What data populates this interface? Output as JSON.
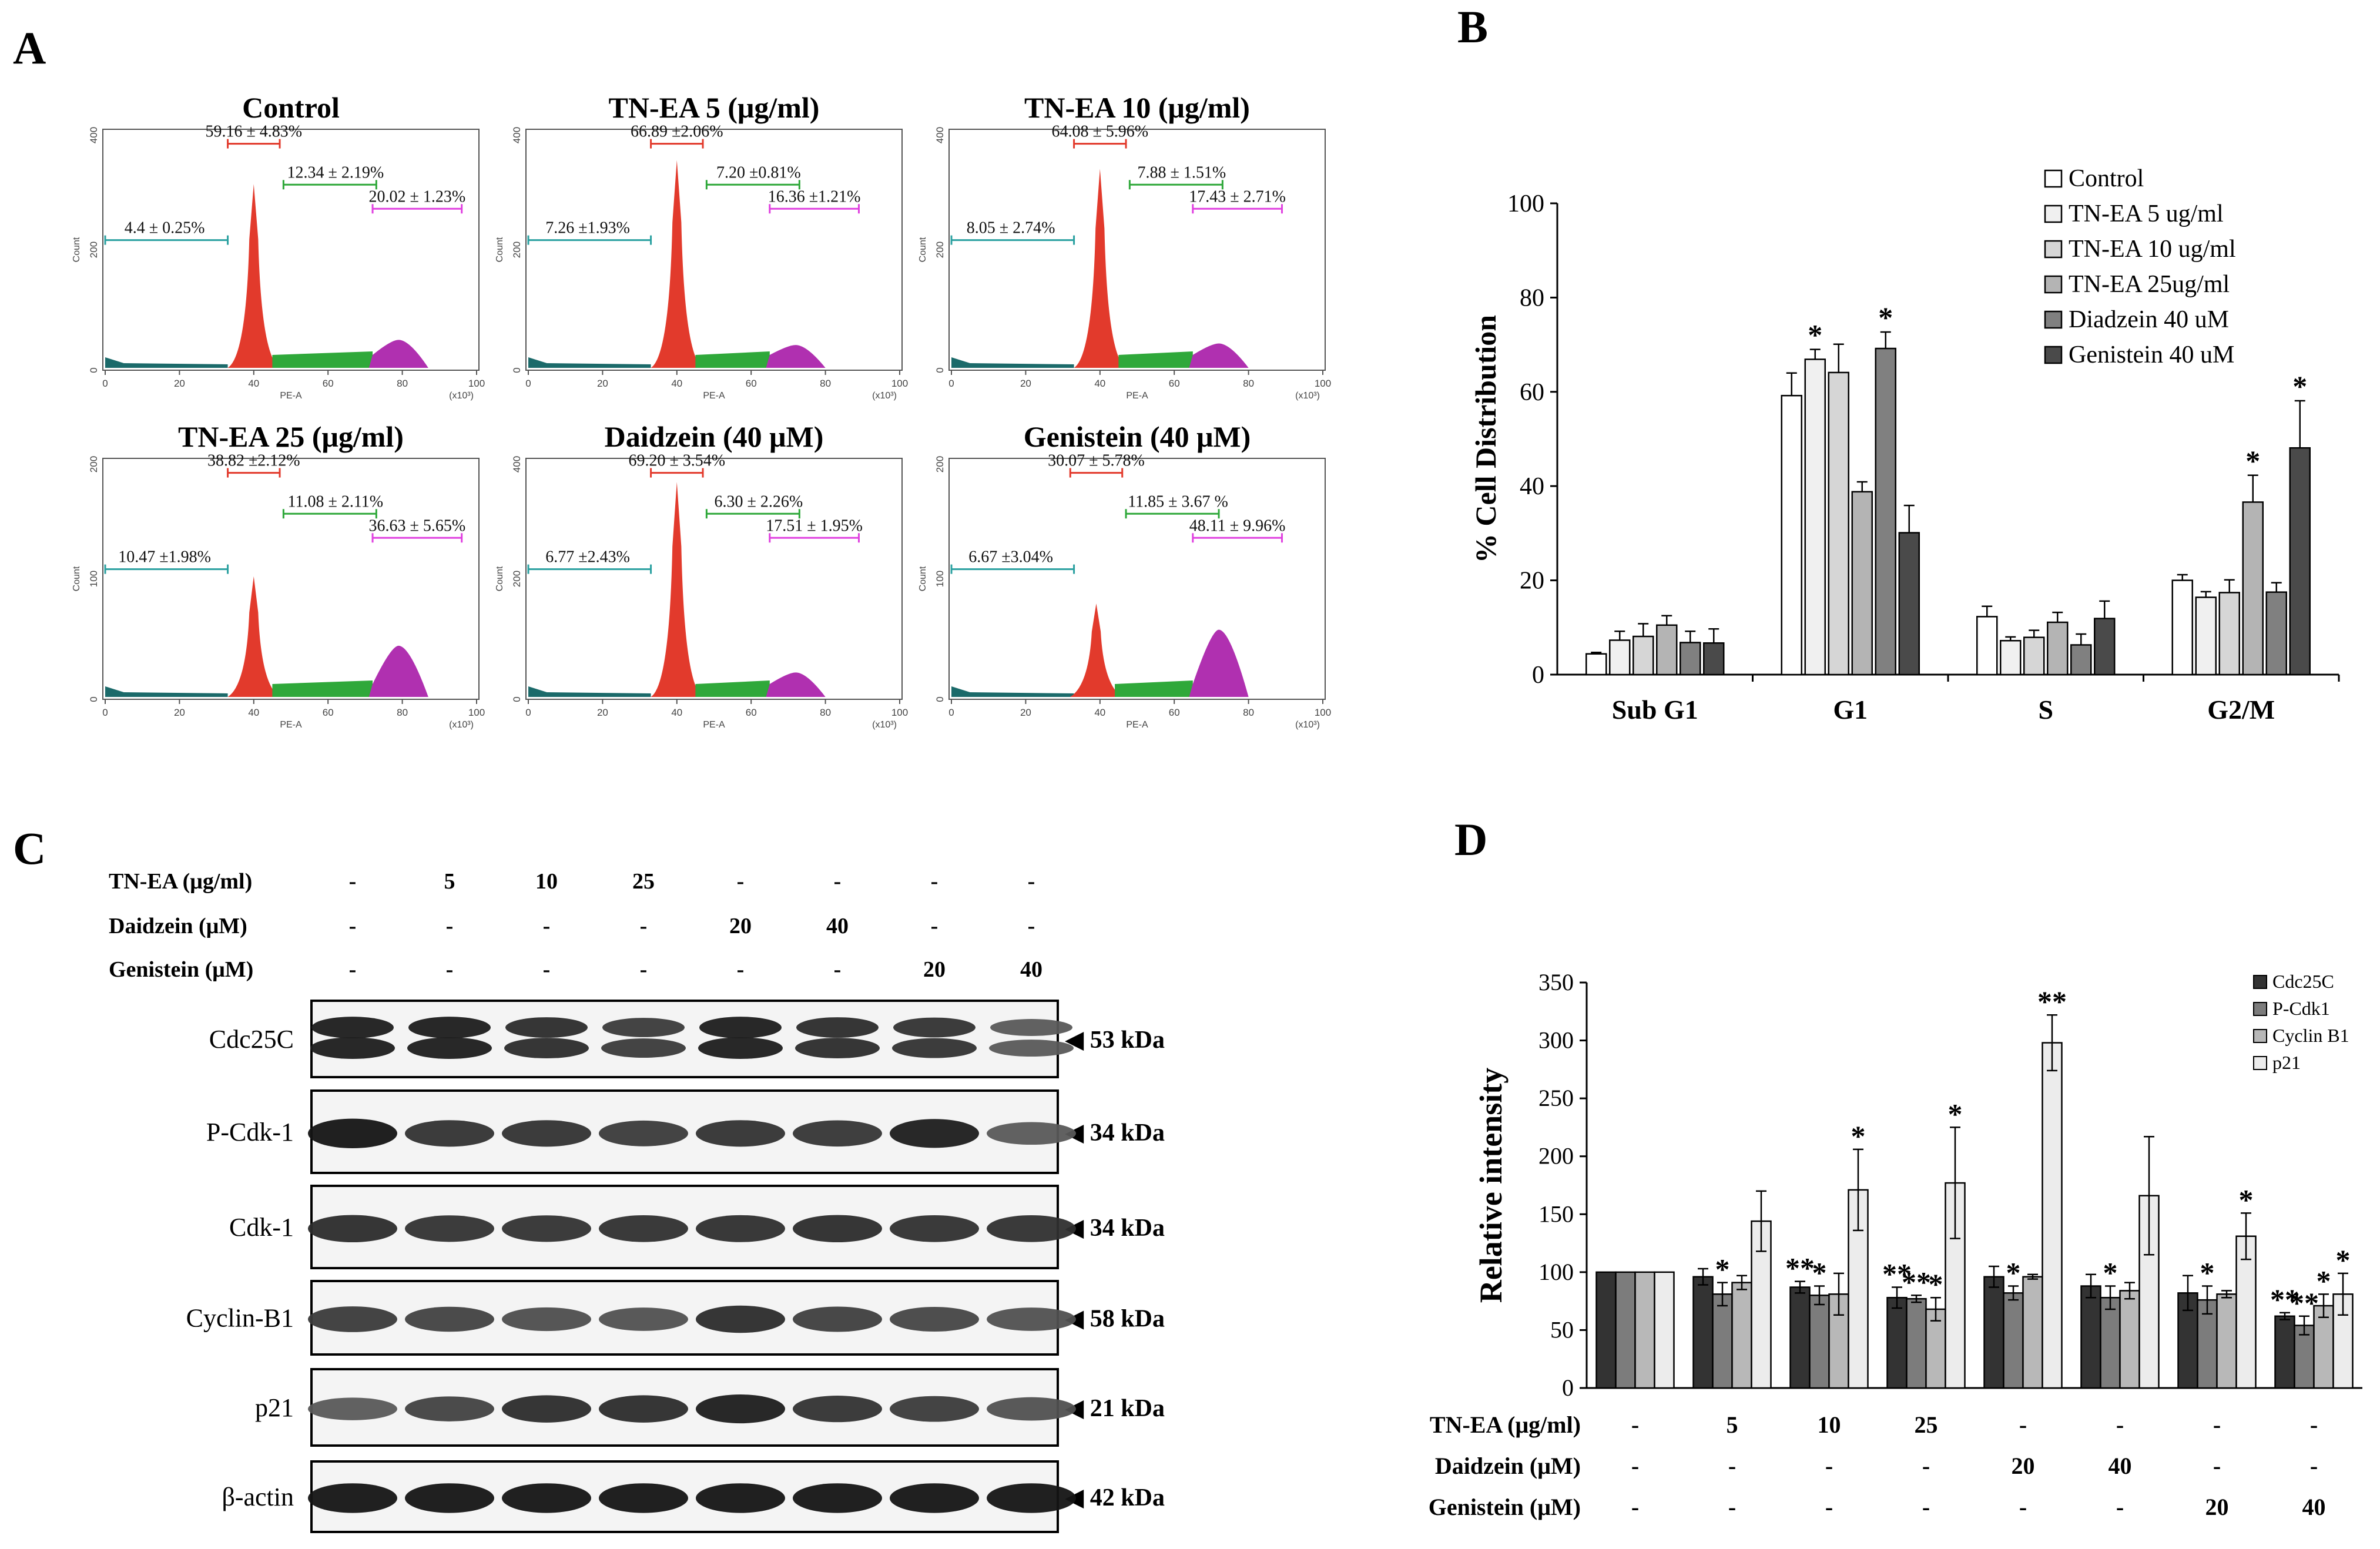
{
  "panels": {
    "a": "A",
    "b": "B",
    "c": "C",
    "d": "D"
  },
  "panel_a": {
    "x_axis_label": "PE-A",
    "y_axis_label": "Count",
    "x_scale": "(x10³)",
    "x_ticks": [
      "0",
      "20",
      "40",
      "60",
      "80",
      "100"
    ],
    "histograms": [
      {
        "title": "Control",
        "y_ticks": [
          "0",
          "200",
          "400"
        ],
        "labels": [
          "4.4 ± 0.25%",
          "59.16 ± 4.83%",
          "12.34 ± 2.19%",
          "20.02 ± 1.23%"
        ]
      },
      {
        "title": "TN-EA 5 (μg/ml)",
        "y_ticks": [
          "0",
          "200",
          "400"
        ],
        "labels": [
          "7.26 ±1.93%",
          "66.89 ±2.06%",
          "7.20 ±0.81%",
          "16.36 ±1.21%"
        ]
      },
      {
        "title": "TN-EA 10 (μg/ml)",
        "y_ticks": [
          "0",
          "200",
          "400"
        ],
        "labels": [
          "8.05 ± 2.74%",
          "64.08 ± 5.96%",
          "7.88 ± 1.51%",
          "17.43 ± 2.71%"
        ]
      },
      {
        "title": "TN-EA 25 (μg/ml)",
        "y_ticks": [
          "0",
          "100",
          "200"
        ],
        "labels": [
          "10.47 ±1.98%",
          "38.82 ±2.12%",
          "11.08 ± 2.11%",
          "36.63 ± 5.65%"
        ]
      },
      {
        "title": "Daidzein (40 μM)",
        "y_ticks": [
          "0",
          "200",
          "400"
        ],
        "labels": [
          "6.77 ±2.43%",
          "69.20 ± 3.54%",
          "6.30 ± 2.26%",
          "17.51 ± 1.95%"
        ]
      },
      {
        "title": "Genistein (40 μM)",
        "y_ticks": [
          "0",
          "100",
          "200"
        ],
        "labels": [
          "6.67 ±3.04%",
          "30.07 ± 5.78%",
          "11.85 ± 3.67 %",
          "48.11 ± 9.96%"
        ]
      }
    ]
  },
  "chart_data": [
    {
      "type": "bar",
      "title": "",
      "ylabel": "% Cell Distribution",
      "xlabel": "",
      "ylim": [
        0,
        100
      ],
      "y_ticks": [
        0,
        20,
        40,
        60,
        80,
        100
      ],
      "categories": [
        "Sub G1",
        "G1",
        "S",
        "G2/M"
      ],
      "legend_position": "top-right",
      "series": [
        {
          "name": "Control",
          "color": "#ffffff",
          "values": [
            4.4,
            59.2,
            12.3,
            20.0
          ],
          "errors": [
            0.3,
            4.8,
            2.2,
            1.2
          ]
        },
        {
          "name": "TN-EA 5 ug/ml",
          "color": "#f0f0f0",
          "values": [
            7.3,
            66.9,
            7.2,
            16.4
          ],
          "errors": [
            1.9,
            2.1,
            0.8,
            1.2
          ]
        },
        {
          "name": "TN-EA 10 ug/ml",
          "color": "#d6d6d6",
          "values": [
            8.1,
            64.1,
            7.9,
            17.4
          ],
          "errors": [
            2.7,
            6.0,
            1.5,
            2.7
          ]
        },
        {
          "name": "TN-EA 25ug/ml",
          "color": "#b4b4b4",
          "values": [
            10.5,
            38.8,
            11.1,
            36.6
          ],
          "errors": [
            2.0,
            2.1,
            2.1,
            5.7
          ]
        },
        {
          "name": "Diadzein 40 uM",
          "color": "#808080",
          "values": [
            6.8,
            69.2,
            6.3,
            17.5
          ],
          "errors": [
            2.4,
            3.5,
            2.3,
            2.0
          ]
        },
        {
          "name": "Genistein 40 uM",
          "color": "#4a4a4a",
          "values": [
            6.7,
            30.1,
            11.9,
            48.1
          ],
          "errors": [
            3.0,
            5.8,
            3.7,
            10.0
          ]
        }
      ],
      "significance": [
        {
          "category": "G1",
          "series": "TN-EA 5 ug/ml",
          "mark": "*"
        },
        {
          "category": "G1",
          "series": "Diadzein 40 uM",
          "mark": "*"
        },
        {
          "category": "G2/M",
          "series": "TN-EA 25ug/ml",
          "mark": "*"
        },
        {
          "category": "G2/M",
          "series": "Genistein 40 uM",
          "mark": "*"
        }
      ]
    },
    {
      "type": "bar",
      "title": "",
      "ylabel": "Relative intensity",
      "xlabel": "",
      "ylim": [
        0,
        350
      ],
      "y_ticks": [
        0,
        50,
        100,
        150,
        200,
        250,
        300,
        350
      ],
      "legend_position": "top-right",
      "treatment_rows": [
        {
          "label": "TN-EA (μg/ml)",
          "values": [
            "-",
            "5",
            "10",
            "25",
            "-",
            "-",
            "-",
            "-"
          ]
        },
        {
          "label": "Daidzein (μM)",
          "values": [
            "-",
            "-",
            "-",
            "-",
            "20",
            "40",
            "-",
            "-"
          ]
        },
        {
          "label": "Genistein (μM)",
          "values": [
            "-",
            "-",
            "-",
            "-",
            "-",
            "-",
            "20",
            "40"
          ]
        }
      ],
      "series": [
        {
          "name": "Cdc25C",
          "color": "#333333",
          "values": [
            100,
            96,
            87,
            78,
            96,
            88,
            82,
            62
          ],
          "errors": [
            0,
            7,
            5,
            9,
            9,
            10,
            15,
            3
          ],
          "marks": [
            "",
            "",
            "**",
            "**",
            "",
            "",
            "",
            "**"
          ]
        },
        {
          "name": "P-Cdk1",
          "color": "#7c7c7c",
          "values": [
            100,
            81,
            80,
            77,
            82,
            78,
            76,
            54
          ],
          "errors": [
            0,
            10,
            8,
            3,
            6,
            10,
            12,
            8
          ],
          "marks": [
            "",
            "*",
            "*",
            "**",
            "*",
            "*",
            "*",
            "**"
          ]
        },
        {
          "name": "Cyclin B1",
          "color": "#b8b8b8",
          "values": [
            100,
            91,
            81,
            68,
            96,
            84,
            81,
            71
          ],
          "errors": [
            0,
            6,
            18,
            10,
            2,
            7,
            3,
            10
          ],
          "marks": [
            "",
            "",
            "",
            "*",
            "",
            "",
            "",
            "*"
          ]
        },
        {
          "name": "p21",
          "color": "#ececec",
          "values": [
            100,
            144,
            171,
            177,
            298,
            166,
            131,
            81
          ],
          "errors": [
            0,
            26,
            35,
            48,
            24,
            51,
            20,
            18
          ],
          "marks": [
            "",
            "",
            "*",
            "*",
            "**",
            "",
            "*",
            "*"
          ]
        }
      ]
    }
  ],
  "panel_c": {
    "treatment_rows": [
      {
        "label": "TN-EA (μg/ml)",
        "values": [
          "-",
          "5",
          "10",
          "25",
          "-",
          "-",
          "-",
          "-"
        ]
      },
      {
        "label": "Daidzein (μM)",
        "values": [
          "-",
          "-",
          "-",
          "-",
          "20",
          "40",
          "-",
          "-"
        ]
      },
      {
        "label": "Genistein (μM)",
        "values": [
          "-",
          "-",
          "-",
          "-",
          "-",
          "-",
          "20",
          "40"
        ]
      }
    ],
    "blots": [
      {
        "protein": "Cdc25C",
        "size": "◀ 53 kDa",
        "intensity": [
          0.95,
          0.95,
          0.85,
          0.75,
          0.95,
          0.85,
          0.8,
          0.55
        ],
        "double": true
      },
      {
        "protein": "P-Cdk-1",
        "size": "◀ 34 kDa",
        "intensity": [
          1.0,
          0.8,
          0.8,
          0.75,
          0.8,
          0.78,
          0.95,
          0.55
        ],
        "double": false
      },
      {
        "protein": "Cdk-1",
        "size": "◀ 34 kDa",
        "intensity": [
          0.85,
          0.8,
          0.8,
          0.82,
          0.83,
          0.85,
          0.82,
          0.82
        ],
        "double": false
      },
      {
        "protein": "Cyclin-B1",
        "size": "◀ 58 kDa",
        "intensity": [
          0.75,
          0.7,
          0.62,
          0.6,
          0.85,
          0.72,
          0.68,
          0.6
        ],
        "double": false
      },
      {
        "protein": "p21",
        "size": "◀ 21 kDa",
        "intensity": [
          0.55,
          0.7,
          0.85,
          0.85,
          0.95,
          0.8,
          0.75,
          0.6
        ],
        "double": false
      },
      {
        "protein": "β-actin",
        "size": "◀ 42 kDa",
        "intensity": [
          1.0,
          1.0,
          1.0,
          1.0,
          1.0,
          1.0,
          1.0,
          1.0
        ],
        "double": false
      }
    ]
  }
}
